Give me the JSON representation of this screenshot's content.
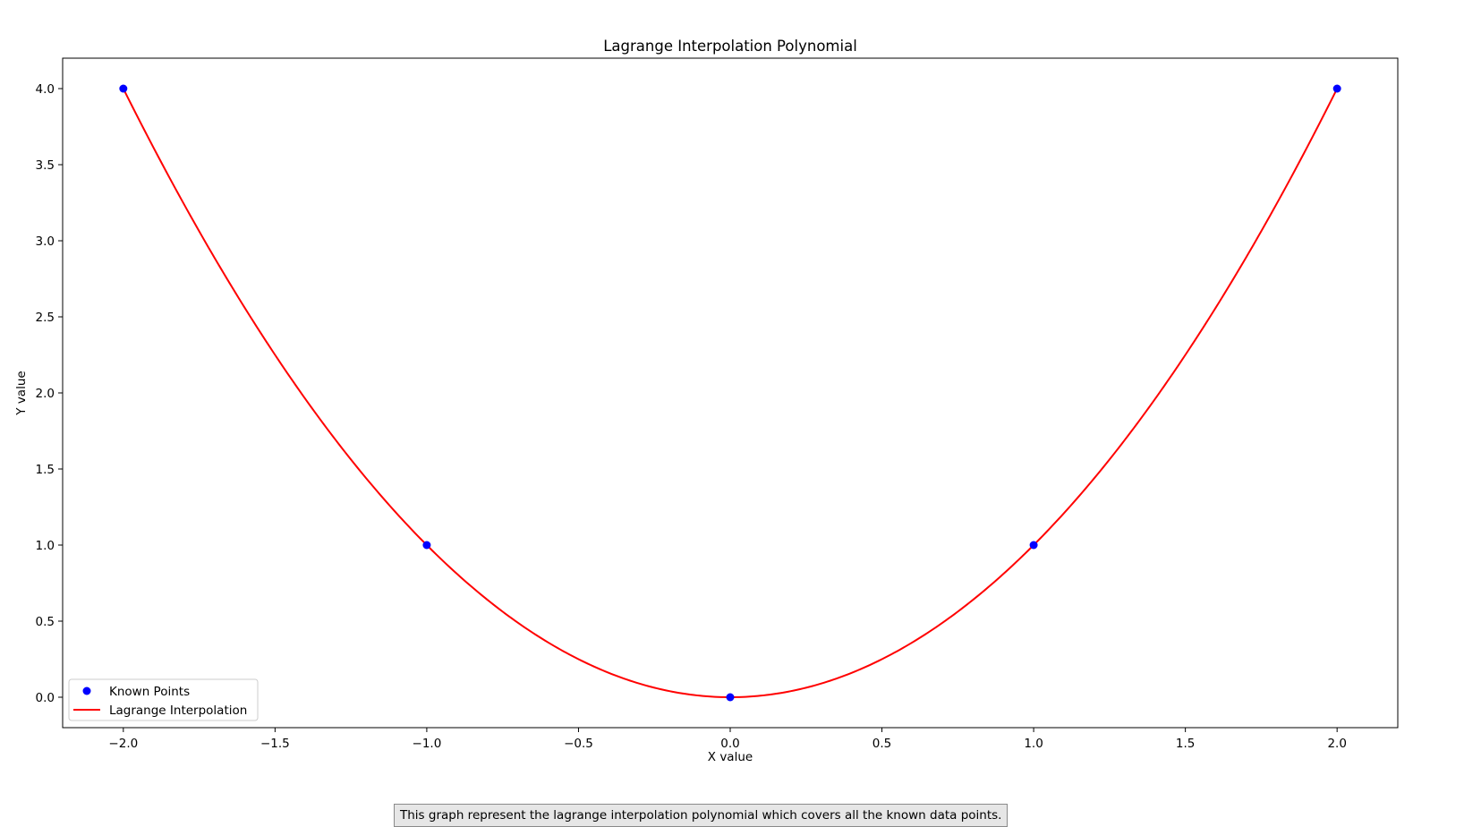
{
  "chart_data": {
    "type": "line",
    "title": "Lagrange Interpolation Polynomial",
    "xlabel": "X value",
    "ylabel": "Y value",
    "xlim": [
      -2.2,
      2.2
    ],
    "ylim": [
      -0.2,
      4.2
    ],
    "xticks": [
      -2.0,
      -1.5,
      -1.0,
      -0.5,
      0.0,
      0.5,
      1.0,
      1.5,
      2.0
    ],
    "xtick_labels": [
      "−2.0",
      "−1.5",
      "−1.0",
      "−0.5",
      "0.0",
      "0.5",
      "1.0",
      "1.5",
      "2.0"
    ],
    "yticks": [
      0.0,
      0.5,
      1.0,
      1.5,
      2.0,
      2.5,
      3.0,
      3.5,
      4.0
    ],
    "ytick_labels": [
      "0.0",
      "0.5",
      "1.0",
      "1.5",
      "2.0",
      "2.5",
      "3.0",
      "3.5",
      "4.0"
    ],
    "grid": false,
    "legend_position": "lower-left",
    "series": [
      {
        "name": "Known Points",
        "kind": "scatter",
        "color": "#0000ff",
        "x": [
          -2,
          -1,
          0,
          1,
          2
        ],
        "y": [
          4,
          1,
          0,
          1,
          4
        ]
      },
      {
        "name": "Lagrange Interpolation",
        "kind": "line",
        "color": "#ff0000",
        "function": "x^2",
        "x_range": [
          -2,
          2
        ]
      }
    ]
  },
  "caption": "This graph represent the lagrange interpolation polynomial which covers all the known data points."
}
